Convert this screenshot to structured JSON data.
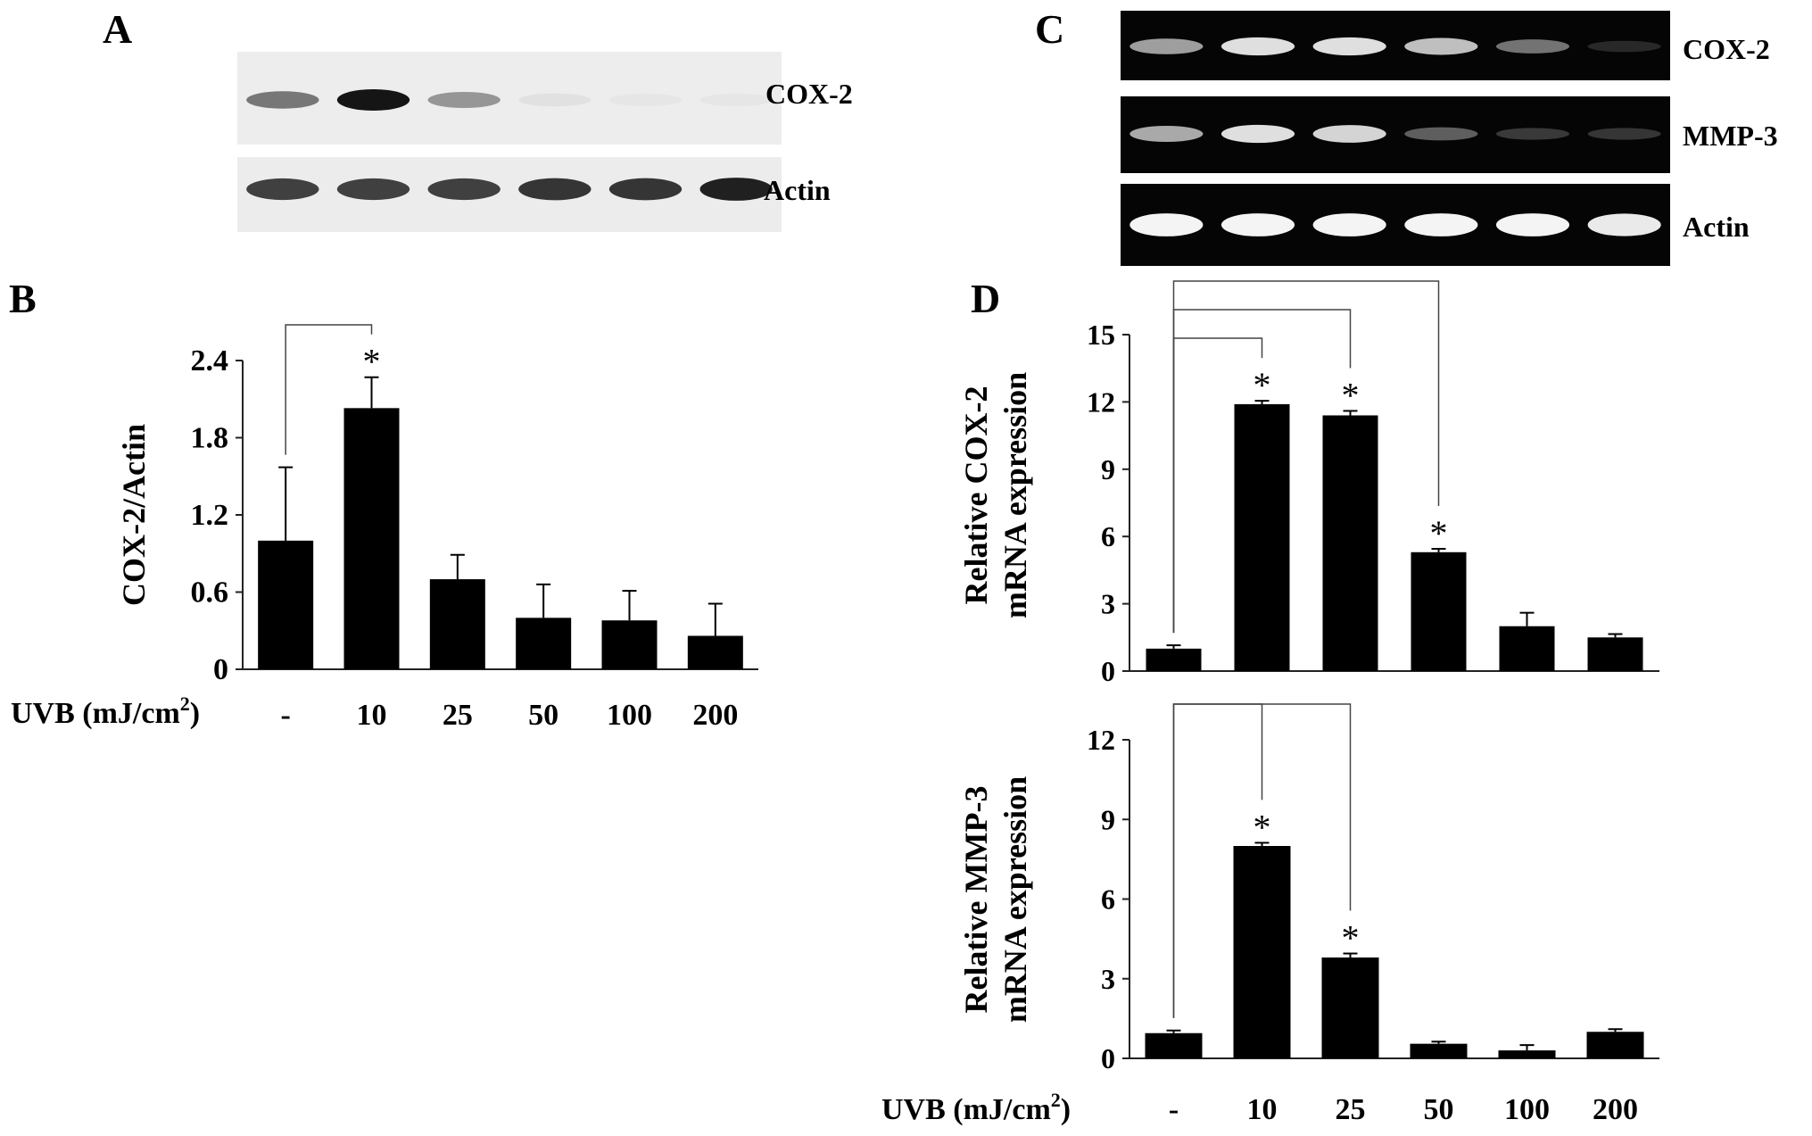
{
  "panels": {
    "A": {
      "letter": "A",
      "blots": [
        {
          "label": "COX-2",
          "bands": [
            0.55,
            1.0,
            0.4,
            0.05,
            0.02,
            0.02
          ],
          "theme": "western"
        },
        {
          "label": "Actin",
          "bands": [
            0.8,
            0.8,
            0.8,
            0.85,
            0.85,
            0.95
          ],
          "theme": "western"
        }
      ]
    },
    "C": {
      "letter": "C",
      "blots": [
        {
          "label": "COX-2",
          "bands": [
            0.55,
            0.85,
            0.85,
            0.7,
            0.35,
            0.0
          ],
          "theme": "gel"
        },
        {
          "label": "MMP-3",
          "bands": [
            0.6,
            0.85,
            0.8,
            0.25,
            0.08,
            0.06
          ],
          "theme": "gel"
        },
        {
          "label": "Actin",
          "bands": [
            0.95,
            0.95,
            0.95,
            0.95,
            0.95,
            0.9
          ],
          "theme": "gel"
        }
      ]
    },
    "B": {
      "letter": "B"
    },
    "D": {
      "letter": "D"
    }
  },
  "uvb_label": "UVB (mJ/cm",
  "uvb_sup": "2",
  "uvb_close": ")",
  "significance_marker": "*",
  "chart_data": [
    {
      "id": "B",
      "type": "bar",
      "ylabel": "COX-2/Actin",
      "categories": [
        "-",
        "10",
        "25",
        "50",
        "100",
        "200"
      ],
      "values": [
        1.0,
        2.03,
        0.7,
        0.4,
        0.38,
        0.26
      ],
      "errors": [
        0.57,
        0.24,
        0.19,
        0.26,
        0.23,
        0.25
      ],
      "ylim": [
        0,
        2.4
      ],
      "yticks": [
        "0",
        "0.6",
        "1.2",
        "1.8",
        "2.4"
      ],
      "significant": [
        false,
        true,
        false,
        false,
        false,
        false
      ],
      "brackets": [
        [
          0,
          1
        ]
      ]
    },
    {
      "id": "D1",
      "type": "bar",
      "ylabel": [
        "Relative COX-2",
        "mRNA expression"
      ],
      "categories": [
        "-",
        "10",
        "25",
        "50",
        "100",
        "200"
      ],
      "values": [
        1.0,
        11.9,
        11.4,
        5.3,
        2.0,
        1.5
      ],
      "errors": [
        0.15,
        0.15,
        0.2,
        0.15,
        0.6,
        0.15
      ],
      "ylim": [
        0,
        15
      ],
      "yticks": [
        "0",
        "3",
        "6",
        "9",
        "12",
        "15"
      ],
      "significant": [
        false,
        true,
        true,
        true,
        false,
        false
      ],
      "brackets": [
        [
          0,
          1
        ],
        [
          0,
          2
        ],
        [
          0,
          3
        ]
      ]
    },
    {
      "id": "D2",
      "type": "bar",
      "ylabel": [
        "Relative MMP-3",
        "mRNA expression"
      ],
      "categories": [
        "-",
        "10",
        "25",
        "50",
        "100",
        "200"
      ],
      "values": [
        0.95,
        8.0,
        3.8,
        0.55,
        0.3,
        1.0
      ],
      "errors": [
        0.1,
        0.12,
        0.15,
        0.08,
        0.2,
        0.1
      ],
      "ylim": [
        0,
        12
      ],
      "yticks": [
        "0",
        "3",
        "6",
        "9",
        "12"
      ],
      "significant": [
        false,
        true,
        true,
        false,
        false,
        false
      ],
      "brackets": [
        [
          0,
          1
        ],
        [
          0,
          2
        ]
      ]
    }
  ]
}
